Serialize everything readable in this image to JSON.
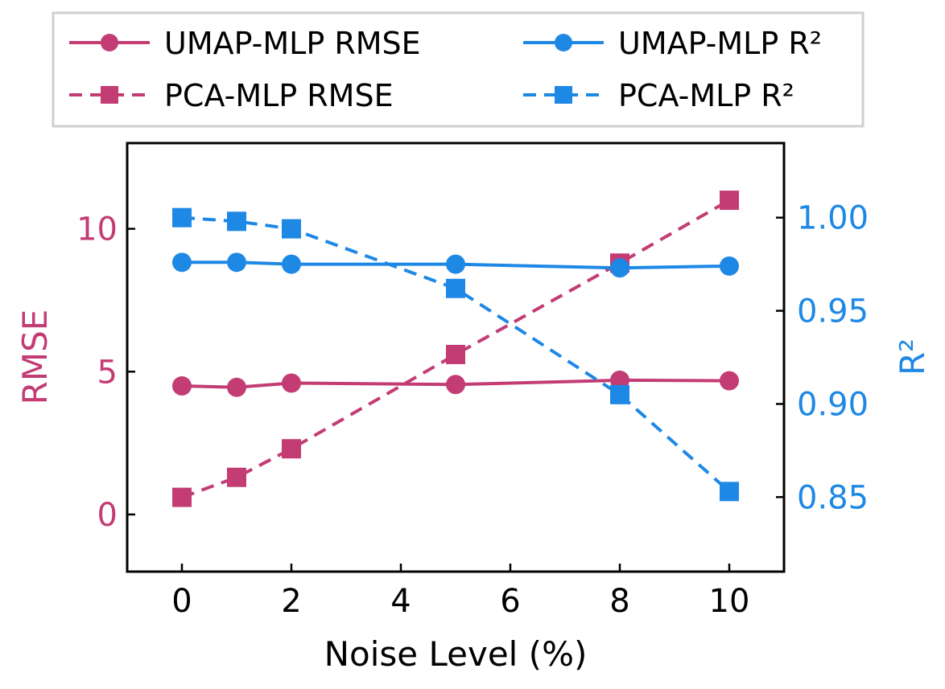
{
  "chart_data": {
    "type": "line",
    "title": "",
    "xlabel": "Noise Level (%)",
    "ylabel_left": "RMSE",
    "ylabel_right": "R²",
    "x": [
      0,
      1,
      2,
      5,
      8,
      10
    ],
    "xlim": [
      -1,
      11
    ],
    "xticks": [
      "0",
      "2",
      "4",
      "6",
      "8",
      "10"
    ],
    "ylim_left": [
      -2,
      13
    ],
    "yticks_left": [
      "0",
      "5",
      "10"
    ],
    "ylim_right": [
      0.81,
      1.04
    ],
    "yticks_right": [
      "0.85",
      "0.90",
      "0.95",
      "1.00"
    ],
    "grid": false,
    "legend_position": "above the plot",
    "series": [
      {
        "name": "UMAP-MLP RMSE",
        "axis": "left",
        "marker": "circle",
        "line": "solid",
        "color": "#c33c74",
        "values": [
          4.5,
          4.45,
          4.6,
          4.55,
          4.7,
          4.68
        ]
      },
      {
        "name": "PCA-MLP RMSE",
        "axis": "left",
        "marker": "square",
        "line": "dashed",
        "color": "#c33c74",
        "values": [
          0.6,
          1.3,
          2.3,
          5.6,
          8.8,
          11.0
        ]
      },
      {
        "name": "UMAP-MLP R²",
        "axis": "right",
        "marker": "circle",
        "line": "solid",
        "color": "#1e88e5",
        "values": [
          0.976,
          0.976,
          0.975,
          0.975,
          0.973,
          0.974
        ]
      },
      {
        "name": "PCA-MLP R²",
        "axis": "right",
        "marker": "square",
        "line": "dashed",
        "color": "#1e88e5",
        "values": [
          1.0,
          0.998,
          0.994,
          0.962,
          0.905,
          0.853
        ]
      }
    ]
  }
}
